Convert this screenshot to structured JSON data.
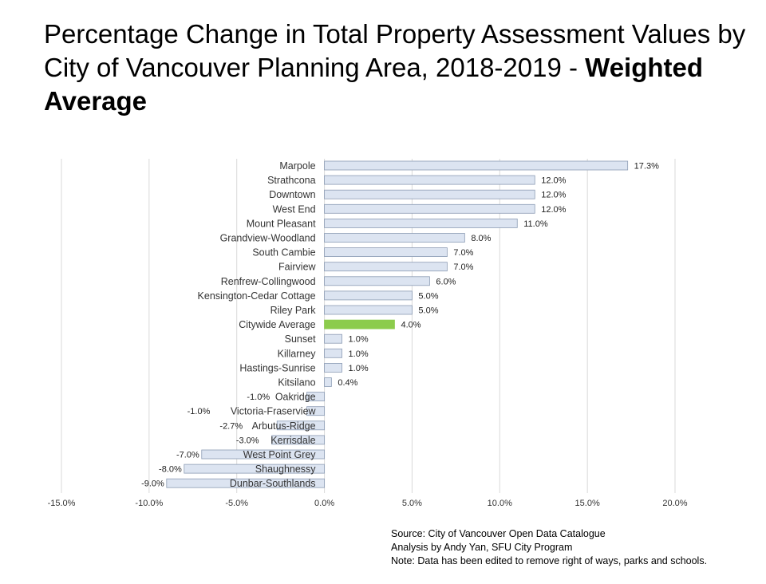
{
  "title": {
    "main": "Percentage Change in Total Property Assessment Values by City of Vancouver Planning Area, 2018-2019 - ",
    "emphasis": "Weighted Average"
  },
  "source": {
    "line1": "Source: City of Vancouver Open Data Catalogue",
    "line2": "Analysis by Andy Yan, SFU City Program",
    "line3": "Note: Data has been edited to remove right of ways, parks and schools."
  },
  "colors": {
    "bar_fill": "#dce4f1",
    "bar_stroke": "#8b9bb4",
    "highlight_fill": "#8ccc4c",
    "grid": "#d9d9d9"
  },
  "chart_data": {
    "type": "bar",
    "orientation": "horizontal",
    "categories": [
      "Marpole",
      "Strathcona",
      "Downtown",
      "West End",
      "Mount Pleasant",
      "Grandview-Woodland",
      "South Cambie",
      "Fairview",
      "Renfrew-Collingwood",
      "Kensington-Cedar Cottage",
      "Riley Park",
      "Citywide Average",
      "Sunset",
      "Killarney",
      "Hastings-Sunrise",
      "Kitsilano",
      "Oakridge",
      "Victoria-Fraserview",
      "Arbutus-Ridge",
      "Kerrisdale",
      "West Point Grey",
      "Shaughnessy",
      "Dunbar-Southlands"
    ],
    "values": [
      17.3,
      12.0,
      12.0,
      12.0,
      11.0,
      8.0,
      7.0,
      7.0,
      6.0,
      5.0,
      5.0,
      4.0,
      1.0,
      1.0,
      1.0,
      0.4,
      -1.0,
      -1.0,
      -2.7,
      -3.0,
      -7.0,
      -8.0,
      -9.0
    ],
    "value_labels": [
      "17.3%",
      "12.0%",
      "12.0%",
      "12.0%",
      "11.0%",
      "8.0%",
      "7.0%",
      "7.0%",
      "6.0%",
      "5.0%",
      "5.0%",
      "4.0%",
      "1.0%",
      "1.0%",
      "1.0%",
      "0.4%",
      "-1.0%",
      "-1.0%",
      "-2.7%",
      "-3.0%",
      "-7.0%",
      "-8.0%",
      "-9.0%"
    ],
    "highlight": "Citywide Average",
    "xlim": [
      -15,
      20
    ],
    "xticks": [
      -15,
      -10,
      -5,
      0,
      5,
      10,
      15,
      20
    ],
    "xtick_labels": [
      "-15.0%",
      "-10.0%",
      "-5.0%",
      "0.0%",
      "5.0%",
      "10.0%",
      "15.0%",
      "20.0%"
    ],
    "grid": true
  }
}
